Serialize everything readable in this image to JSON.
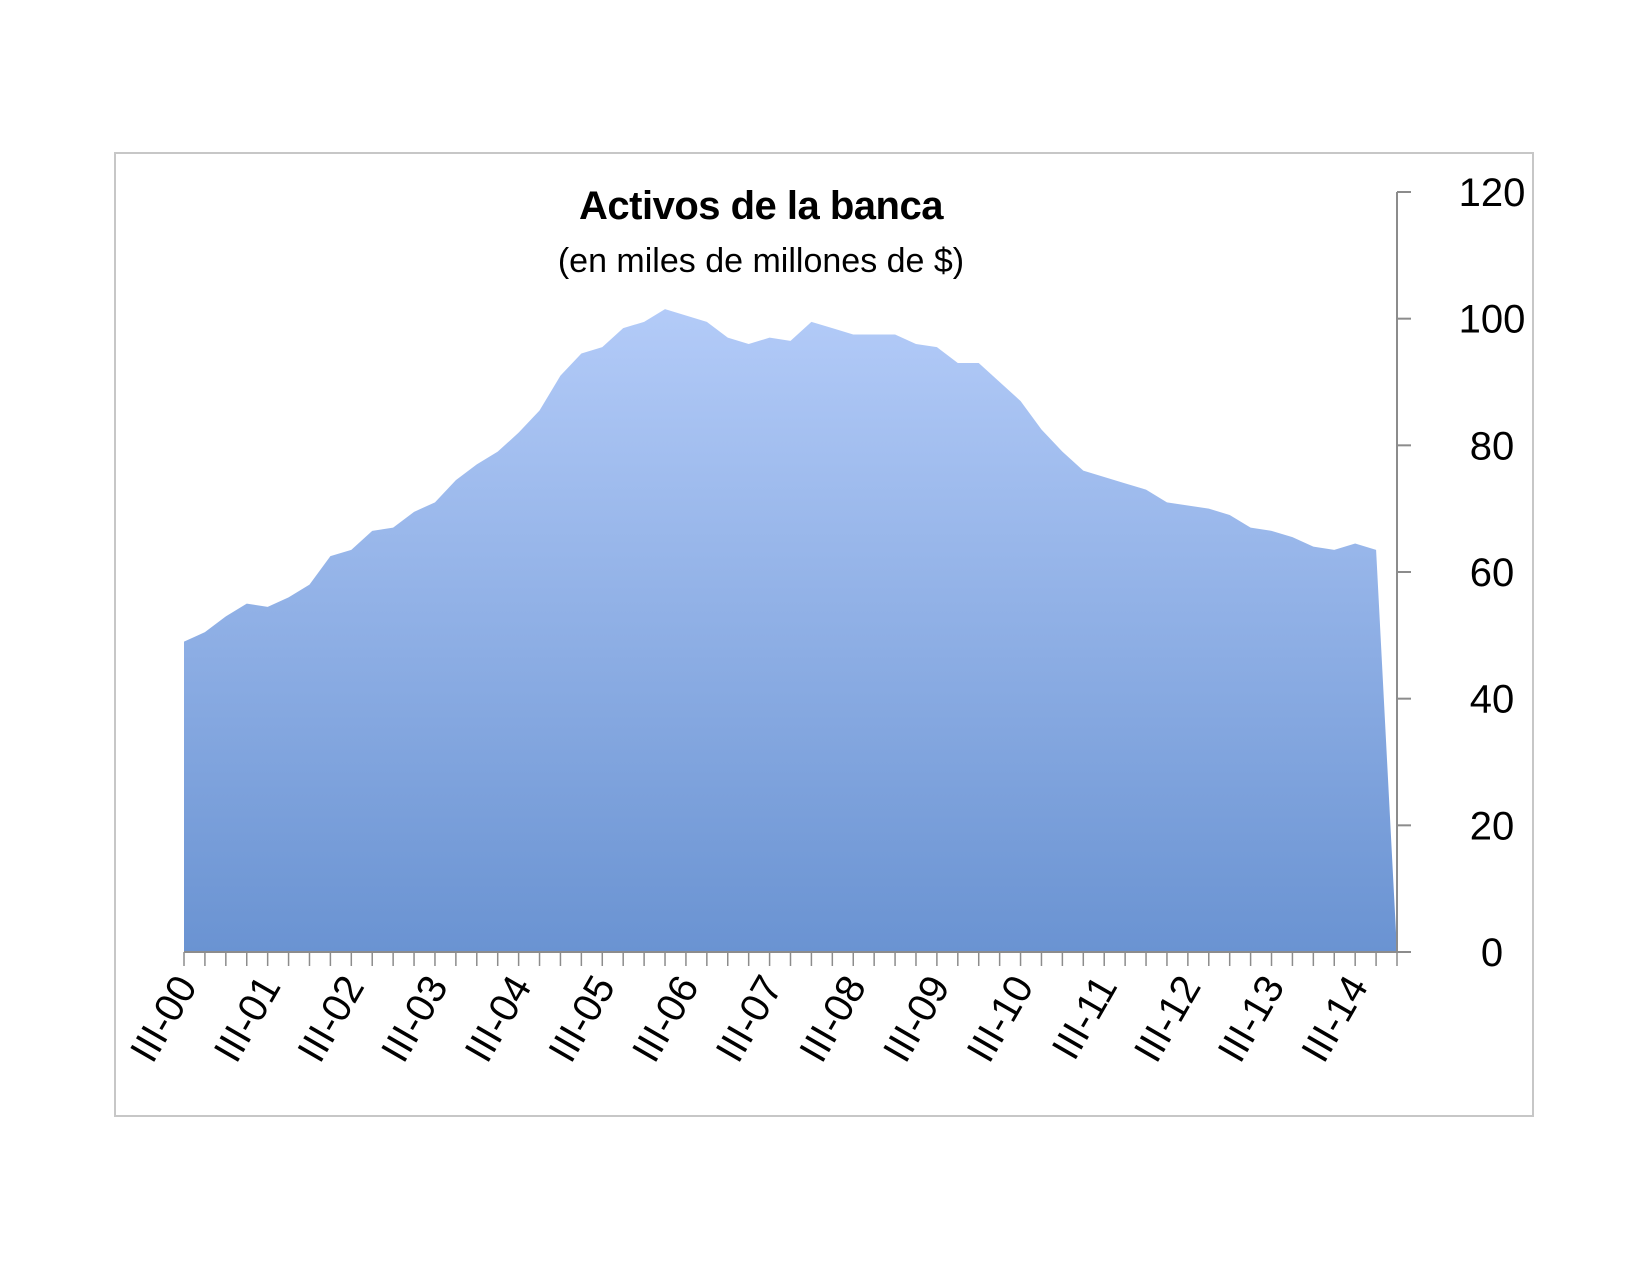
{
  "chart_data": {
    "type": "area",
    "title": "Activos de la banca",
    "subtitle": "(en miles de millones de $)",
    "xlabel": "",
    "ylabel": "",
    "ylim": [
      0,
      120
    ],
    "yticks": [
      0,
      20,
      40,
      60,
      80,
      100,
      120
    ],
    "y_axis_side": "right",
    "grid": false,
    "legend": "none",
    "fill_color_top": "#b3cbf8",
    "fill_color_bottom": "#6a93d2",
    "x_tick_labels": [
      "III-00",
      "III-01",
      "III-02",
      "III-03",
      "III-04",
      "III-05",
      "III-06",
      "III-07",
      "III-08",
      "III-09",
      "III-10",
      "III-11",
      "III-12",
      "III-13",
      "III-14"
    ],
    "x_tick_label_positions": [
      0,
      4,
      8,
      12,
      16,
      20,
      24,
      28,
      32,
      36,
      40,
      44,
      48,
      52,
      56
    ],
    "series": [
      {
        "name": "",
        "values": [
          49,
          50.5,
          53,
          55,
          54.5,
          56,
          58,
          62.5,
          63.5,
          66.5,
          67,
          69.5,
          71,
          74.5,
          77,
          79,
          82,
          85.5,
          91,
          94.5,
          95.5,
          98.5,
          99.5,
          101.5,
          100.5,
          99.5,
          97,
          96,
          97,
          96.5,
          99.5,
          98.5,
          97.5,
          97.5,
          97.5,
          96,
          95.5,
          93,
          93,
          90,
          87,
          82.5,
          79,
          76,
          75,
          74,
          73,
          71,
          70.5,
          70,
          69,
          67,
          66.5,
          65.5,
          64,
          63.5,
          64.5,
          63.5,
          0
        ]
      }
    ]
  }
}
